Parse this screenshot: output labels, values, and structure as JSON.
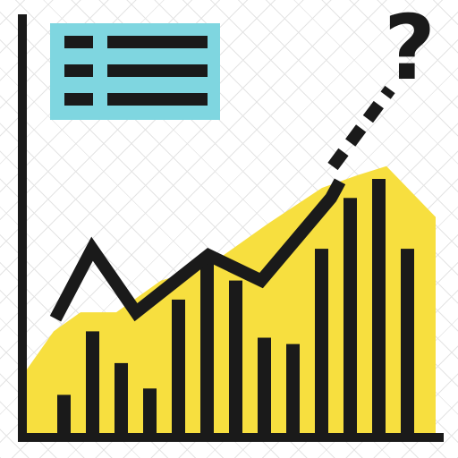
{
  "icon": {
    "name": "trend-analysis-icon",
    "symbol": "?",
    "colors": {
      "stroke": "#1a1a1a",
      "area_fill": "#f7df3f",
      "legend_fill": "#7fd6e0",
      "background_checker": "#e4e4e4"
    }
  },
  "chart_data": {
    "type": "bar",
    "values": [
      3,
      8,
      5.5,
      3.5,
      10.5,
      13.5,
      12,
      7.5,
      7,
      14.5,
      18.5,
      20,
      14.5
    ],
    "ylim": [
      0,
      20
    ],
    "trend_line": [
      9,
      14.5,
      9.5,
      14,
      15,
      12,
      18.5,
      19.8
    ],
    "area_top": [
      5,
      8,
      9.5,
      9.5,
      12,
      13,
      16.5,
      19.3,
      20.3,
      21,
      17
    ]
  }
}
